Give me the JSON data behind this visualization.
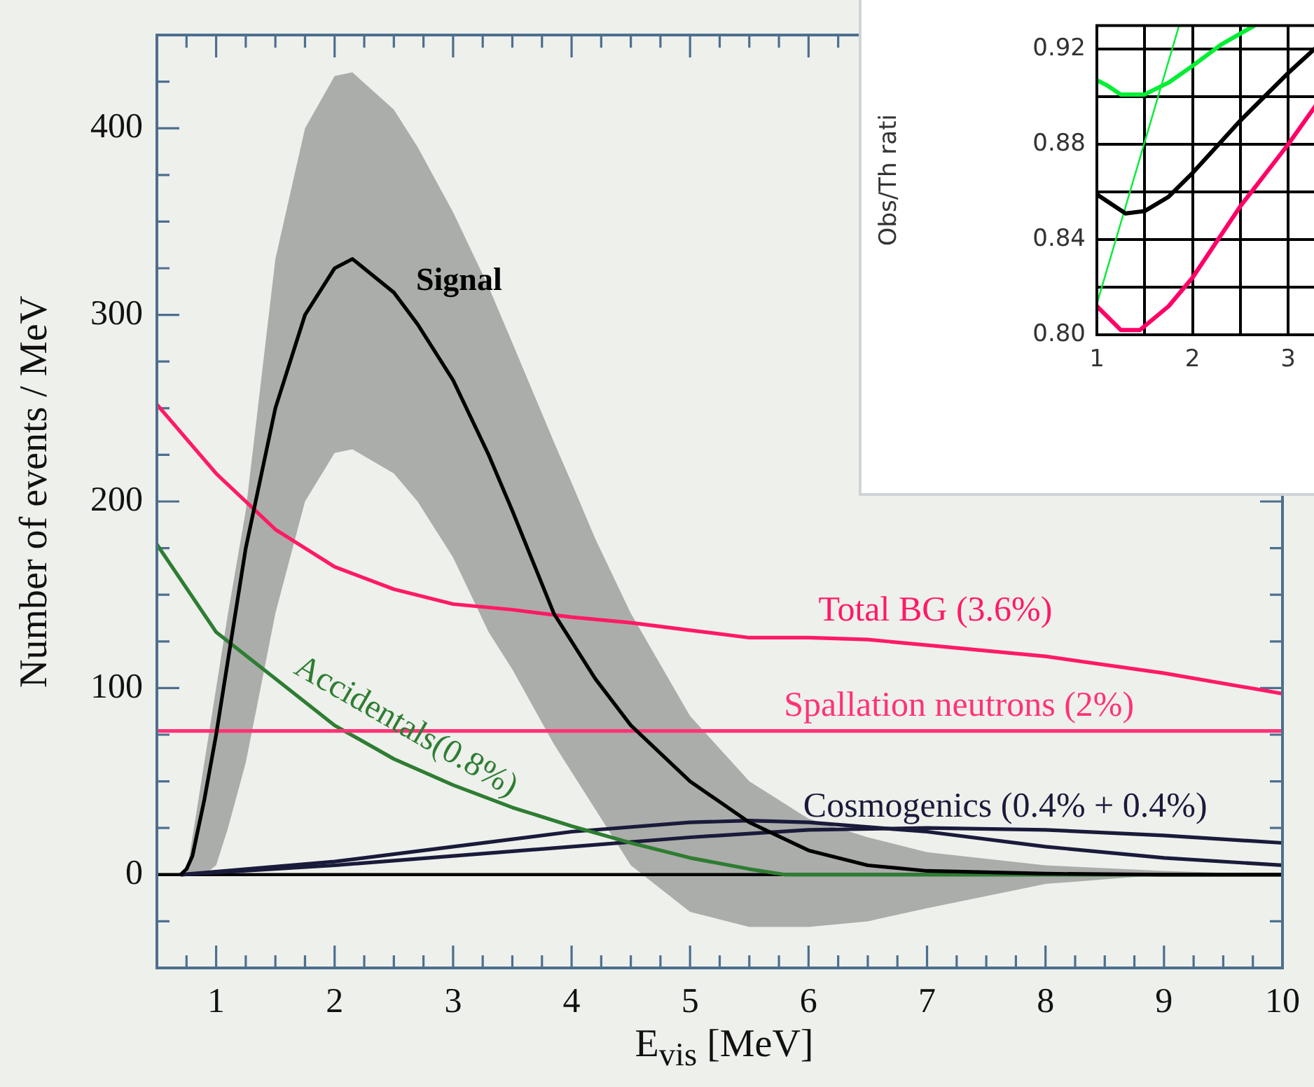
{
  "chart_data": [
    {
      "type": "line",
      "xlabel": "E$_{vis}$ [MeV]",
      "ylabel": "Number of events / MeV",
      "xlim": [
        0.5,
        10
      ],
      "ylim": [
        -50,
        450
      ],
      "xticks": [
        {
          "value": 0.5,
          "label": null
        },
        {
          "value": 0.75,
          "label": null
        },
        1,
        {
          "value": 1.25,
          "label": null
        },
        {
          "value": 1.5,
          "label": null
        },
        {
          "value": 1.75,
          "label": null
        },
        2,
        {
          "value": 2.25,
          "label": null
        },
        {
          "value": 2.5,
          "label": null
        },
        {
          "value": 2.75,
          "label": null
        },
        3,
        {
          "value": 3.25,
          "label": null
        },
        {
          "value": 3.5,
          "label": null
        },
        {
          "value": 3.75,
          "label": null
        },
        4,
        {
          "value": 4.25,
          "label": null
        },
        {
          "value": 4.5,
          "label": null
        },
        {
          "value": 4.75,
          "label": null
        },
        5,
        {
          "value": 5.25,
          "label": null
        },
        {
          "value": 5.5,
          "label": null
        },
        {
          "value": 5.75,
          "label": null
        },
        6,
        {
          "value": 6.25,
          "label": null
        },
        {
          "value": 6.5,
          "label": null
        },
        {
          "value": 6.75,
          "label": null
        },
        7,
        {
          "value": 7.25,
          "label": null
        },
        {
          "value": 7.5,
          "label": null
        },
        {
          "value": 7.75,
          "label": null
        },
        8,
        {
          "value": 8.25,
          "label": null
        },
        {
          "value": 8.5,
          "label": null
        },
        {
          "value": 8.75,
          "label": null
        },
        9,
        {
          "value": 9.25,
          "label": null
        },
        {
          "value": 9.5,
          "label": null
        },
        {
          "value": 9.75,
          "label": null
        },
        10
      ],
      "yticks": [
        {
          "value": -25,
          "label": null
        },
        0,
        {
          "value": 25,
          "label": null
        },
        {
          "value": 50,
          "label": null
        },
        {
          "value": 75,
          "label": null
        },
        100,
        {
          "value": 125,
          "label": null
        },
        {
          "value": 150,
          "label": null
        },
        {
          "value": 175,
          "label": null
        },
        200,
        {
          "value": 225,
          "label": null
        },
        {
          "value": 250,
          "label": null
        },
        {
          "value": 275,
          "label": null
        },
        300,
        {
          "value": 325,
          "label": null
        },
        {
          "value": 350,
          "label": null
        },
        {
          "value": 375,
          "label": null
        },
        400,
        {
          "value": 425,
          "label": null
        }
      ],
      "grid": false,
      "legend": false,
      "marker": "none",
      "line_style": "solid",
      "ref_lines": [
        {
          "axis": "y",
          "value": 0,
          "color": "#000000"
        }
      ],
      "series": [
        {
          "name": "Signal",
          "color": "#000000",
          "x": [
            0.7,
            0.75,
            0.8,
            0.9,
            1.0,
            1.1,
            1.25,
            1.5,
            1.75,
            2.0,
            2.15,
            2.5,
            2.7,
            3.0,
            3.3,
            3.5,
            3.85,
            4.0,
            4.2,
            4.5,
            5,
            5.5,
            6,
            6.5,
            7,
            8,
            9,
            10
          ],
          "values": [
            0,
            3,
            10,
            40,
            75,
            115,
            175,
            250,
            300,
            325,
            330,
            312,
            295,
            265,
            225,
            195,
            140,
            125,
            105,
            80,
            50,
            28,
            13,
            5,
            2,
            0.5,
            0,
            0
          ],
          "upper": [
            0,
            0,
            20,
            60,
            100,
            140,
            195,
            330,
            400,
            428,
            430,
            410,
            390,
            355,
            315,
            285,
            232,
            210,
            180,
            140,
            85,
            50,
            30,
            20,
            12,
            5,
            2,
            0
          ],
          "lower": [
            0,
            0,
            0,
            0,
            5,
            25,
            60,
            140,
            200,
            226,
            228,
            215,
            200,
            170,
            130,
            110,
            70,
            55,
            35,
            5,
            -20,
            -28,
            -28,
            -25,
            -18,
            -5,
            0,
            0
          ]
        },
        {
          "name": "Total BG (3.6%)",
          "color": "#ff1a66",
          "x": [
            0.5,
            1.0,
            1.5,
            2,
            2.5,
            3,
            3.5,
            4,
            4.5,
            5,
            5.5,
            6,
            6.5,
            7,
            8,
            9,
            10
          ],
          "values": [
            252,
            215,
            185,
            165,
            153,
            145,
            142,
            138,
            135,
            131,
            127,
            127,
            126,
            123,
            117,
            108,
            97
          ]
        },
        {
          "name": "Spallation neutrons (2%)",
          "color": "#ff3377",
          "x": [
            0.5,
            10
          ],
          "values": [
            77,
            77
          ]
        },
        {
          "name": "Accidentals(0.8%)",
          "color": "#2e7d32",
          "x": [
            0.5,
            1,
            1.5,
            2,
            2.5,
            3,
            3.5,
            4,
            4.5,
            5,
            5.5,
            5.8,
            10
          ],
          "values": [
            177,
            130,
            105,
            80,
            62,
            48,
            36,
            26,
            17,
            9,
            3,
            0,
            0
          ]
        },
        {
          "name": "Cosmogenics (0.4% + 0.4%)",
          "color": "#1a1a3a",
          "x": [
            0.7,
            2,
            3,
            4,
            5,
            5.5,
            6,
            7,
            8,
            9,
            10
          ],
          "values": [
            0,
            7,
            15,
            23,
            28,
            29,
            28,
            23,
            15,
            9,
            5
          ]
        },
        {
          "color": "#1a1a3a",
          "x": [
            0.7,
            2,
            3,
            4,
            5,
            6,
            7,
            8,
            9,
            10
          ],
          "values": [
            0,
            5,
            10,
            15,
            20,
            24,
            25,
            24,
            21,
            17
          ]
        }
      ]
    },
    {
      "type": "line",
      "ylabel": "Obs/Th rati",
      "xlim": [
        1,
        3.3
      ],
      "ylim": [
        0.8,
        0.93
      ],
      "xticks": [
        1,
        {
          "value": 1.5,
          "label": null
        },
        2,
        {
          "value": 2.5,
          "label": null
        },
        3
      ],
      "yticks": [
        {
          "value": 0.8,
          "label": "0.80"
        },
        {
          "value": 0.82,
          "label": null
        },
        0.84,
        {
          "value": 0.86,
          "label": null
        },
        0.88,
        {
          "value": 0.9,
          "label": null
        },
        0.92
      ],
      "grid": true,
      "legend": false,
      "marker": "none",
      "line_style": "solid",
      "series": [
        {
          "color": "#000000",
          "x": [
            1,
            1.3,
            1.5,
            1.75,
            2,
            2.5,
            3,
            3.3
          ],
          "values": [
            0.859,
            0.851,
            0.852,
            0.858,
            0.868,
            0.89,
            0.91,
            0.921
          ]
        },
        {
          "color": "#ff0066",
          "x": [
            1,
            1.25,
            1.45,
            1.75,
            2,
            2.5,
            3,
            3.3
          ],
          "values": [
            0.812,
            0.802,
            0.802,
            0.812,
            0.824,
            0.854,
            0.88,
            0.897
          ]
        },
        {
          "color": "#00ee33",
          "x": [
            1,
            1.1,
            1.25,
            1.5,
            1.75,
            2,
            2.3,
            2.65
          ],
          "values": [
            0.907,
            0.905,
            0.901,
            0.901,
            0.906,
            0.913,
            0.922,
            0.93
          ]
        },
        {
          "color": "#00ee33",
          "x": [
            1,
            1.86
          ],
          "values": [
            0.813,
            0.93
          ]
        }
      ]
    }
  ]
}
